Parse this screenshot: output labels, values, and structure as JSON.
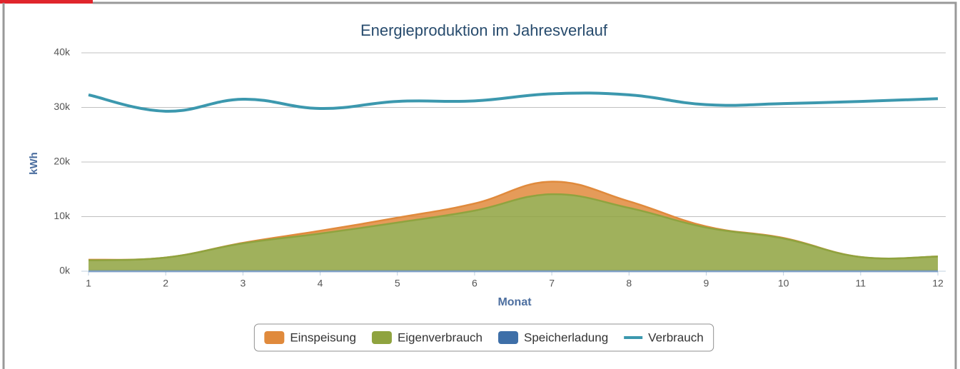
{
  "chart_data": {
    "type": "area",
    "title": "Energieproduktion im Jahresverlauf",
    "x_label": "Monat",
    "y_label": "kWh",
    "categories": [
      "1",
      "2",
      "3",
      "4",
      "5",
      "6",
      "7",
      "8",
      "9",
      "10",
      "11",
      "12"
    ],
    "stacked": true,
    "spline": true,
    "grid": true,
    "legend": "bottom",
    "ylim": [
      0,
      40000
    ],
    "yticks": [
      {
        "value": 0,
        "label": "0k"
      },
      {
        "value": 10000,
        "label": "10k"
      },
      {
        "value": 20000,
        "label": "20k"
      },
      {
        "value": 30000,
        "label": "30k"
      },
      {
        "value": 40000,
        "label": "40k"
      }
    ],
    "series": [
      {
        "name": "Einspeisung",
        "type": "area",
        "color": "#e08a3c",
        "values": [
          100,
          0,
          100,
          500,
          900,
          1300,
          2300,
          1200,
          200,
          100,
          0,
          0
        ]
      },
      {
        "name": "Eigenverbrauch",
        "type": "area",
        "color": "#8fa33f",
        "values": [
          2000,
          2500,
          5100,
          6900,
          8900,
          11100,
          14100,
          11600,
          8000,
          6000,
          2600,
          2700
        ]
      },
      {
        "name": "Speicherladung",
        "type": "area",
        "color": "#3e6fa8",
        "values": [
          0,
          0,
          0,
          0,
          0,
          0,
          0,
          0,
          0,
          0,
          0,
          0
        ]
      },
      {
        "name": "Verbrauch",
        "type": "line",
        "color": "#3c98ae",
        "values": [
          32300,
          29300,
          31500,
          29800,
          31100,
          31200,
          32500,
          32300,
          30500,
          30700,
          31100,
          31600
        ]
      }
    ]
  }
}
